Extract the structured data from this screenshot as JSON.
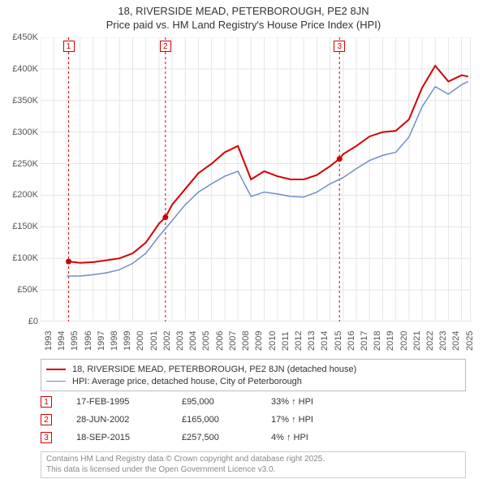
{
  "title_line1": "18, RIVERSIDE MEAD, PETERBOROUGH, PE2 8JN",
  "title_line2": "Price paid vs. HM Land Registry's House Price Index (HPI)",
  "chart": {
    "type": "line",
    "background_color": "#ffffff",
    "plot_border_color": "#cccccc",
    "grid_color": "#e5e5e5",
    "xlim": [
      1993,
      2025.7
    ],
    "ylim": [
      0,
      450000
    ],
    "ytick_step": 50000,
    "yticks": [
      "£0",
      "£50K",
      "£100K",
      "£150K",
      "£200K",
      "£250K",
      "£300K",
      "£350K",
      "£400K",
      "£450K"
    ],
    "xticks": [
      "1993",
      "1994",
      "1995",
      "1996",
      "1997",
      "1998",
      "1999",
      "2000",
      "2001",
      "2002",
      "2003",
      "2004",
      "2005",
      "2006",
      "2007",
      "2008",
      "2009",
      "2010",
      "2011",
      "2012",
      "2013",
      "2014",
      "2015",
      "2016",
      "2017",
      "2018",
      "2019",
      "2020",
      "2021",
      "2022",
      "2023",
      "2024",
      "2025"
    ],
    "xtick_rotation": -90,
    "tick_fontsize": 11,
    "tick_color": "#555555",
    "series": [
      {
        "name": "price_paid",
        "label": "18, RIVERSIDE MEAD, PETERBOROUGH, PE2 8JN (detached house)",
        "color": "#d40000",
        "line_width": 2,
        "x": [
          1995.13,
          1996,
          1997,
          1998,
          1999,
          2000,
          2001,
          2002,
          2002.49,
          2003,
          2004,
          2005,
          2006,
          2007,
          2008,
          2009,
          2010,
          2011,
          2012,
          2013,
          2014,
          2015,
          2015.72,
          2016,
          2017,
          2018,
          2019,
          2020,
          2021,
          2022,
          2023,
          2024,
          2025,
          2025.5
        ],
        "y": [
          95000,
          93000,
          94000,
          97000,
          100000,
          108000,
          125000,
          155000,
          165000,
          185000,
          210000,
          235000,
          250000,
          268000,
          278000,
          225000,
          238000,
          230000,
          225000,
          225000,
          232000,
          246000,
          257500,
          265000,
          278000,
          293000,
          300000,
          302000,
          320000,
          370000,
          405000,
          380000,
          390000,
          388000
        ]
      },
      {
        "name": "hpi",
        "label": "HPI: Average price, detached house, City of Peterborough",
        "color": "#6f8fc8",
        "line_width": 1.5,
        "x": [
          1995,
          1996,
          1997,
          1998,
          1999,
          2000,
          2001,
          2002,
          2003,
          2004,
          2005,
          2006,
          2007,
          2008,
          2009,
          2010,
          2011,
          2012,
          2013,
          2014,
          2015,
          2016,
          2017,
          2018,
          2019,
          2020,
          2021,
          2022,
          2023,
          2024,
          2025,
          2025.5
        ],
        "y": [
          72000,
          72000,
          74000,
          77000,
          82000,
          92000,
          108000,
          135000,
          160000,
          185000,
          205000,
          218000,
          230000,
          238000,
          198000,
          205000,
          202000,
          198000,
          197000,
          205000,
          218000,
          228000,
          242000,
          255000,
          263000,
          268000,
          292000,
          340000,
          372000,
          360000,
          375000,
          380000
        ]
      }
    ],
    "sale_markers": {
      "color": "#d40000",
      "radius": 3.5,
      "points": [
        {
          "x": 1995.13,
          "y": 95000
        },
        {
          "x": 2002.49,
          "y": 165000
        },
        {
          "x": 2015.72,
          "y": 257500
        }
      ]
    },
    "event_lines": [
      {
        "num": "1",
        "x": 1995.13,
        "color": "#d40000"
      },
      {
        "num": "2",
        "x": 2002.49,
        "color": "#d40000"
      },
      {
        "num": "3",
        "x": 2015.72,
        "color": "#d40000"
      }
    ],
    "event_line_dash": "3,3",
    "event_line_width": 1
  },
  "legend": {
    "border_color": "#bbbbbb",
    "fontsize": 11,
    "items": [
      {
        "color": "#d40000",
        "width": 2,
        "label": "18, RIVERSIDE MEAD, PETERBOROUGH, PE2 8JN (detached house)"
      },
      {
        "color": "#6f8fc8",
        "width": 1.5,
        "label": "HPI: Average price, detached house, City of Peterborough"
      }
    ]
  },
  "events_table": {
    "fontsize": 11,
    "rows": [
      {
        "num": "1",
        "color": "#d40000",
        "date": "17-FEB-1995",
        "price": "£95,000",
        "delta": "33% ↑ HPI"
      },
      {
        "num": "2",
        "color": "#d40000",
        "date": "28-JUN-2002",
        "price": "£165,000",
        "delta": "17% ↑ HPI"
      },
      {
        "num": "3",
        "color": "#d40000",
        "date": "18-SEP-2015",
        "price": "£257,500",
        "delta": "4% ↑ HPI"
      }
    ]
  },
  "footer": {
    "border_color": "#cccccc",
    "text_color": "#888888",
    "fontsize": 10,
    "line1": "Contains HM Land Registry data © Crown copyright and database right 2025.",
    "line2": "This data is licensed under the Open Government Licence v3.0."
  }
}
